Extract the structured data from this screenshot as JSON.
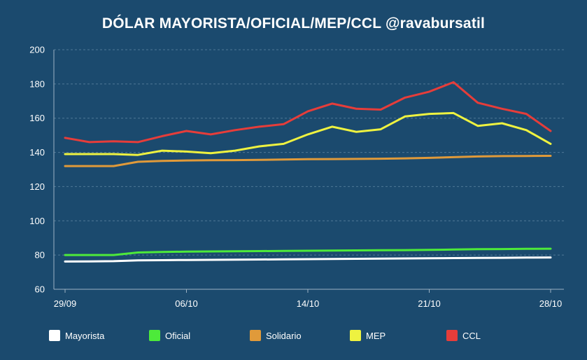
{
  "chart_data": {
    "type": "line",
    "title": "DÓLAR MAYORISTA/OFICIAL/MEP/CCL @ravabursatil",
    "xlabel": "",
    "ylabel": "",
    "ylim": [
      60,
      200
    ],
    "yticks": [
      60,
      80,
      100,
      120,
      140,
      160,
      180,
      200
    ],
    "grid": true,
    "legend_position": "bottom",
    "x": [
      "29/09",
      "30/09",
      "01/10",
      "02/10",
      "05/10",
      "06/10",
      "07/10",
      "08/10",
      "09/10",
      "13/10",
      "14/10",
      "15/10",
      "16/10",
      "19/10",
      "20/10",
      "21/10",
      "22/10",
      "23/10",
      "26/10",
      "27/10",
      "28/10"
    ],
    "xtick_labels": [
      "29/09",
      "06/10",
      "14/10",
      "21/10",
      "28/10"
    ],
    "series": [
      {
        "name": "Mayorista",
        "color": "#ffffff",
        "values": [
          76.2,
          76.3,
          76.4,
          76.9,
          77.0,
          77.1,
          77.2,
          77.3,
          77.4,
          77.5,
          77.6,
          77.7,
          77.8,
          77.9,
          78.0,
          78.1,
          78.2,
          78.3,
          78.4,
          78.5,
          78.6
        ]
      },
      {
        "name": "Oficial",
        "color": "#4dea3a",
        "values": [
          80.0,
          80.0,
          80.0,
          81.5,
          81.8,
          82.0,
          82.1,
          82.2,
          82.3,
          82.4,
          82.5,
          82.6,
          82.7,
          82.8,
          82.9,
          83.0,
          83.2,
          83.4,
          83.5,
          83.6,
          83.7
        ]
      },
      {
        "name": "Solidario",
        "color": "#e09a3a",
        "values": [
          132.0,
          132.0,
          132.0,
          134.5,
          135.0,
          135.3,
          135.4,
          135.5,
          135.6,
          135.8,
          136.0,
          136.1,
          136.2,
          136.3,
          136.5,
          136.8,
          137.2,
          137.6,
          137.8,
          137.9,
          138.0
        ]
      },
      {
        "name": "MEP",
        "color": "#eef240",
        "values": [
          139.0,
          139.0,
          139.0,
          138.5,
          141.0,
          140.5,
          139.5,
          141.0,
          143.5,
          145.0,
          150.5,
          155.0,
          152.0,
          153.5,
          161.0,
          162.5,
          163.0,
          155.5,
          157.0,
          153.0,
          145.0
        ]
      },
      {
        "name": "CCL",
        "color": "#e63d3a",
        "values": [
          148.5,
          146.0,
          146.5,
          146.0,
          149.5,
          152.5,
          150.5,
          153.0,
          155.0,
          156.5,
          164.0,
          168.5,
          165.5,
          165.0,
          172.0,
          175.5,
          181.0,
          169.0,
          165.5,
          162.5,
          152.5
        ]
      }
    ]
  }
}
